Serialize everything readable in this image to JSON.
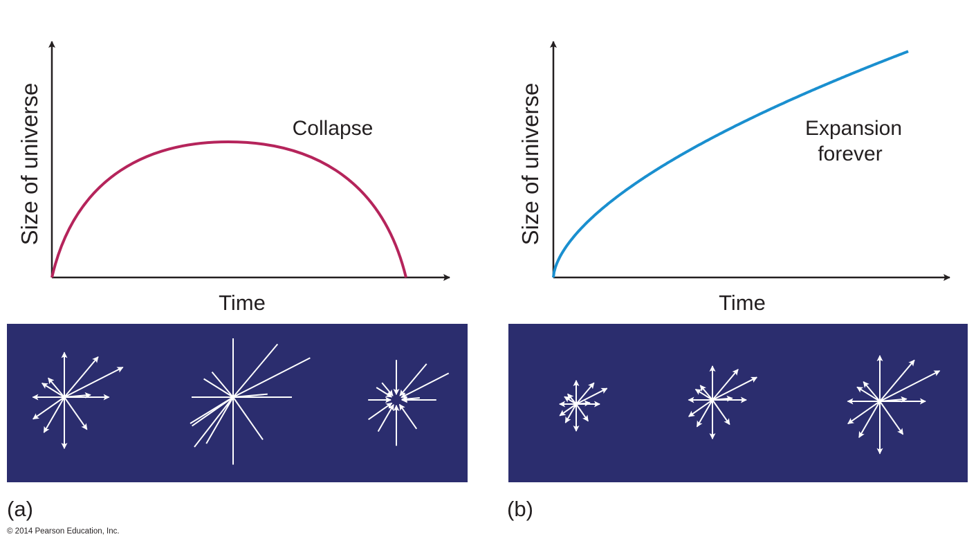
{
  "panels": [
    {
      "y_axis_label": "Size of universe",
      "x_axis_label": "Time",
      "curve_label": [
        "Collapse"
      ],
      "panel_label": "(a)"
    },
    {
      "y_axis_label": "Size of universe",
      "x_axis_label": "Time",
      "curve_label": [
        "Expansion",
        "forever"
      ],
      "panel_label": "(b)"
    }
  ],
  "copyright": "© 2014 Pearson Education, Inc."
}
